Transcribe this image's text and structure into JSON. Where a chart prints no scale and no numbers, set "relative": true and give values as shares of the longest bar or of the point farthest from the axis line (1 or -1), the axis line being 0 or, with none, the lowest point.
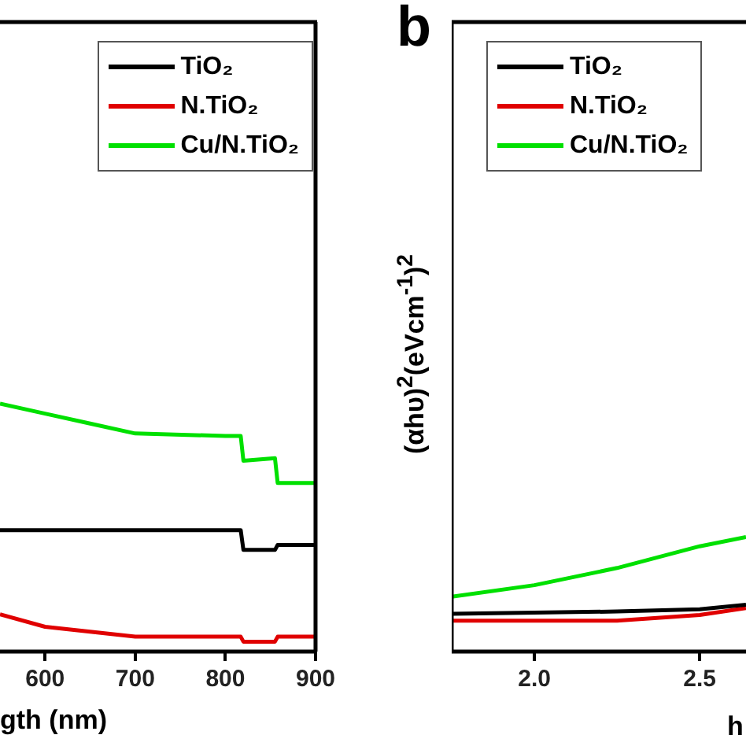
{
  "chart_data": [
    {
      "type": "line",
      "xlabel": "gth (nm)",
      "relative": true,
      "xlim": [
        550,
        900
      ],
      "xticks": [
        600,
        700,
        800,
        900
      ],
      "legend": "top right",
      "grid": false,
      "marker": "none",
      "line_style": "solid",
      "series": [
        {
          "name": "TiO₂",
          "color": "#000000",
          "x": [
            550,
            600,
            650,
            700,
            800,
            817,
            820,
            855,
            858,
            900
          ],
          "values": [
            0.49,
            0.49,
            0.49,
            0.49,
            0.49,
            0.49,
            0.41,
            0.41,
            0.43,
            0.43
          ]
        },
        {
          "name": "N.TiO₂",
          "color": "#e00000",
          "x": [
            550,
            600,
            650,
            700,
            800,
            817,
            820,
            855,
            858,
            900
          ],
          "values": [
            0.15,
            0.1,
            0.08,
            0.06,
            0.06,
            0.06,
            0.04,
            0.04,
            0.06,
            0.06
          ]
        },
        {
          "name": "Cu/N.TiO₂",
          "color": "#00e000",
          "x": [
            550,
            600,
            650,
            700,
            800,
            817,
            820,
            855,
            858,
            900
          ],
          "values": [
            1,
            0.96,
            0.92,
            0.88,
            0.87,
            0.87,
            0.77,
            0.78,
            0.68,
            0.68
          ]
        }
      ]
    },
    {
      "type": "line",
      "ylabel": "(αhυ)$^{2}$(eVcm$^{-1}$)$^{2}$",
      "xlabel": "h",
      "annotations": [
        "b"
      ],
      "relative": true,
      "xlim": [
        1.75,
        2.64
      ],
      "xticks": [
        {
          "value": 2.0,
          "label": "2.0"
        },
        {
          "value": 2.5,
          "label": "2.5"
        }
      ],
      "legend": "top left",
      "grid": false,
      "marker": "none",
      "line_style": "solid",
      "series": [
        {
          "name": "TiO₂",
          "color": "#000000",
          "x": [
            1.75,
            2.0,
            2.25,
            2.5,
            2.64
          ],
          "values": [
            0.33,
            0.34,
            0.35,
            0.37,
            0.41
          ]
        },
        {
          "name": "N.TiO₂",
          "color": "#e00000",
          "x": [
            1.75,
            2.0,
            2.25,
            2.5,
            2.64
          ],
          "values": [
            0.27,
            0.27,
            0.27,
            0.32,
            0.38
          ]
        },
        {
          "name": "Cu/N.TiO₂",
          "color": "#00e000",
          "x": [
            1.75,
            2.0,
            2.25,
            2.5,
            2.64
          ],
          "values": [
            0.48,
            0.58,
            0.73,
            0.92,
            1
          ]
        }
      ]
    }
  ]
}
